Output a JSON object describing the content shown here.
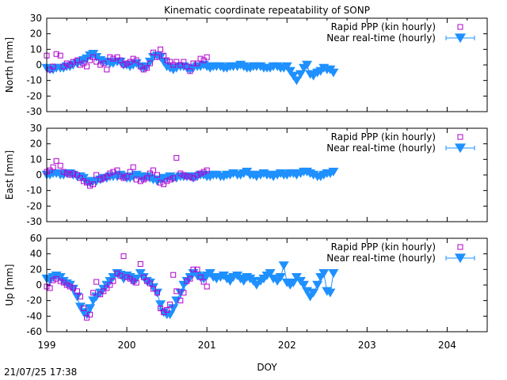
{
  "title": "Kinematic coordinate repeatability of SONP",
  "timestamp": "21/07/25 17:38",
  "xlabel": "DOY",
  "colors": {
    "rapid": "#b000d0",
    "nrt": "#1e90ff",
    "axis": "#000000"
  },
  "chart_data": [
    {
      "type": "scatter",
      "ylabel": "North [mm]",
      "xlim": [
        199,
        204.5
      ],
      "ylim": [
        -30,
        30
      ],
      "yticks": [
        -30,
        -20,
        -10,
        0,
        10,
        20,
        30
      ],
      "legend": "top-right",
      "series": [
        {
          "name": "Rapid PPP (kin hourly)",
          "marker": "square",
          "x": [
            199.0,
            199.04,
            199.08,
            199.12,
            199.17,
            199.21,
            199.25,
            199.29,
            199.33,
            199.38,
            199.42,
            199.46,
            199.5,
            199.54,
            199.58,
            199.62,
            199.67,
            199.71,
            199.75,
            199.79,
            199.83,
            199.88,
            199.92,
            199.96,
            200.0,
            200.04,
            200.08,
            200.12,
            200.17,
            200.21,
            200.25,
            200.29,
            200.33,
            200.38,
            200.42,
            200.46,
            200.5,
            200.54,
            200.58,
            200.62,
            200.67,
            200.71,
            200.75,
            200.79,
            200.83,
            200.88,
            200.92,
            200.96,
            201.0
          ],
          "y": [
            6,
            -3,
            -1,
            7,
            6,
            -1,
            1,
            0,
            2,
            3,
            0,
            1,
            -1,
            3,
            5,
            2,
            0,
            1,
            -3,
            5,
            4,
            5,
            3,
            0,
            1,
            2,
            4,
            3,
            -1,
            -3,
            -2,
            1,
            8,
            5,
            10,
            6,
            3,
            2,
            0,
            2,
            0,
            2,
            -1,
            -4,
            1,
            1,
            4,
            3,
            5
          ]
        },
        {
          "name": "Near real-time (hourly)",
          "marker": "triangle-down",
          "x": [
            199.0,
            199.04,
            199.08,
            199.12,
            199.17,
            199.21,
            199.25,
            199.29,
            199.33,
            199.38,
            199.42,
            199.46,
            199.5,
            199.54,
            199.58,
            199.62,
            199.67,
            199.71,
            199.75,
            199.79,
            199.83,
            199.88,
            199.92,
            199.96,
            200.0,
            200.04,
            200.08,
            200.12,
            200.17,
            200.21,
            200.25,
            200.29,
            200.33,
            200.38,
            200.42,
            200.46,
            200.5,
            200.54,
            200.58,
            200.62,
            200.67,
            200.71,
            200.75,
            200.79,
            200.83,
            200.88,
            200.92,
            200.96,
            201.0,
            201.04,
            201.08,
            201.12,
            201.17,
            201.21,
            201.25,
            201.29,
            201.33,
            201.38,
            201.42,
            201.46,
            201.5,
            201.54,
            201.58,
            201.62,
            201.67,
            201.71,
            201.75,
            201.79,
            201.83,
            201.88,
            201.92,
            201.96,
            202.0,
            202.04,
            202.08,
            202.12,
            202.17,
            202.21,
            202.25,
            202.29,
            202.33,
            202.38,
            202.42,
            202.46,
            202.5,
            202.54,
            202.58
          ],
          "y": [
            -2,
            -3,
            -3,
            -2,
            -2,
            -2,
            -1,
            -1,
            0,
            1,
            2,
            3,
            4,
            6,
            7,
            5,
            3,
            2,
            2,
            1,
            1,
            2,
            2,
            0,
            0,
            -1,
            0,
            1,
            -1,
            -2,
            -1,
            2,
            5,
            6,
            5,
            2,
            -1,
            -2,
            -3,
            -2,
            -1,
            -1,
            -2,
            -3,
            -2,
            -1,
            -1,
            0,
            -1,
            -2,
            -1,
            -1,
            -1,
            -2,
            -2,
            -1,
            -1,
            -1,
            0,
            -1,
            -2,
            -2,
            -1,
            -1,
            -1,
            -2,
            -2,
            -2,
            -1,
            -1,
            -2,
            -2,
            -1,
            -4,
            -7,
            -10,
            -6,
            -2,
            0,
            -6,
            -7,
            -5,
            -4,
            -2,
            -3,
            -3,
            -5
          ]
        }
      ]
    },
    {
      "type": "scatter",
      "ylabel": "East [mm]",
      "xlim": [
        199,
        204.5
      ],
      "ylim": [
        -30,
        30
      ],
      "yticks": [
        -30,
        -20,
        -10,
        0,
        10,
        20,
        30
      ],
      "legend": "top-right",
      "series": [
        {
          "name": "Rapid PPP (kin hourly)",
          "marker": "square",
          "x": [
            199.0,
            199.04,
            199.08,
            199.12,
            199.17,
            199.21,
            199.25,
            199.29,
            199.33,
            199.38,
            199.42,
            199.46,
            199.5,
            199.54,
            199.58,
            199.62,
            199.67,
            199.71,
            199.75,
            199.79,
            199.83,
            199.88,
            199.92,
            199.96,
            200.0,
            200.04,
            200.08,
            200.12,
            200.17,
            200.21,
            200.25,
            200.29,
            200.33,
            200.38,
            200.42,
            200.46,
            200.5,
            200.54,
            200.58,
            200.62,
            200.67,
            200.71,
            200.75,
            200.79,
            200.83,
            200.88,
            200.92,
            200.96,
            201.0
          ],
          "y": [
            2,
            3,
            5,
            9,
            6,
            2,
            1,
            0,
            1,
            0,
            -2,
            -4,
            -5,
            -7,
            -6,
            0,
            -3,
            -2,
            -1,
            1,
            2,
            3,
            -1,
            -2,
            -1,
            2,
            5,
            -3,
            -4,
            -3,
            -2,
            1,
            3,
            0,
            -5,
            -6,
            -4,
            -3,
            -2,
            11,
            1,
            0,
            -1,
            -1,
            -2,
            0,
            1,
            2,
            3
          ]
        },
        {
          "name": "Near real-time (hourly)",
          "marker": "triangle-down",
          "x": [
            199.0,
            199.04,
            199.08,
            199.12,
            199.17,
            199.21,
            199.25,
            199.29,
            199.33,
            199.38,
            199.42,
            199.46,
            199.5,
            199.54,
            199.58,
            199.62,
            199.67,
            199.71,
            199.75,
            199.79,
            199.83,
            199.88,
            199.92,
            199.96,
            200.0,
            200.04,
            200.08,
            200.12,
            200.17,
            200.21,
            200.25,
            200.29,
            200.33,
            200.38,
            200.42,
            200.46,
            200.5,
            200.54,
            200.58,
            200.62,
            200.67,
            200.71,
            200.75,
            200.79,
            200.83,
            200.88,
            200.92,
            200.96,
            201.0,
            201.04,
            201.08,
            201.12,
            201.17,
            201.21,
            201.25,
            201.29,
            201.33,
            201.38,
            201.42,
            201.46,
            201.5,
            201.54,
            201.58,
            201.62,
            201.67,
            201.71,
            201.75,
            201.79,
            201.83,
            201.88,
            201.92,
            201.96,
            202.0,
            202.04,
            202.08,
            202.12,
            202.17,
            202.21,
            202.25,
            202.29,
            202.33,
            202.38,
            202.42,
            202.46,
            202.5,
            202.54,
            202.58
          ],
          "y": [
            0,
            0,
            1,
            1,
            0,
            0,
            1,
            1,
            0,
            -1,
            -1,
            -2,
            -4,
            -5,
            -4,
            -4,
            -3,
            -2,
            -2,
            -1,
            -1,
            -1,
            0,
            -1,
            -2,
            -2,
            -1,
            0,
            -1,
            -2,
            -1,
            -2,
            -3,
            -4,
            -3,
            -2,
            -2,
            -1,
            -2,
            -2,
            -1,
            -1,
            -1,
            -1,
            -2,
            -1,
            0,
            0,
            -1,
            -1,
            0,
            0,
            -1,
            -1,
            0,
            0,
            1,
            0,
            0,
            1,
            2,
            0,
            0,
            -1,
            0,
            1,
            0,
            0,
            -1,
            0,
            1,
            0,
            0,
            1,
            1,
            0,
            1,
            2,
            2,
            1,
            0,
            -1,
            -1,
            0,
            1,
            1,
            2
          ]
        }
      ]
    },
    {
      "type": "scatter",
      "ylabel": "Up [mm]",
      "xlim": [
        199,
        204.5
      ],
      "ylim": [
        -60,
        60
      ],
      "yticks": [
        -60,
        -40,
        -20,
        0,
        20,
        40,
        60
      ],
      "legend": "top-right",
      "series": [
        {
          "name": "Rapid PPP (kin hourly)",
          "marker": "square",
          "x": [
            199.0,
            199.04,
            199.08,
            199.12,
            199.17,
            199.21,
            199.25,
            199.29,
            199.33,
            199.38,
            199.42,
            199.46,
            199.5,
            199.54,
            199.58,
            199.62,
            199.67,
            199.71,
            199.75,
            199.79,
            199.83,
            199.88,
            199.92,
            199.96,
            200.0,
            200.04,
            200.08,
            200.12,
            200.17,
            200.21,
            200.25,
            200.29,
            200.33,
            200.38,
            200.42,
            200.46,
            200.5,
            200.54,
            200.58,
            200.62,
            200.67,
            200.71,
            200.75,
            200.79,
            200.83,
            200.88,
            200.92,
            200.96,
            201.0
          ],
          "y": [
            -2,
            -4,
            6,
            8,
            5,
            3,
            0,
            -2,
            -4,
            -8,
            -15,
            -30,
            -42,
            -38,
            -10,
            4,
            -12,
            -8,
            -4,
            0,
            5,
            15,
            12,
            37,
            10,
            8,
            5,
            3,
            27,
            10,
            5,
            2,
            -5,
            -10,
            -30,
            -35,
            -32,
            -25,
            13,
            -8,
            -20,
            -10,
            5,
            8,
            20,
            20,
            10,
            4,
            -2
          ]
        },
        {
          "name": "Near real-time (hourly)",
          "marker": "triangle-down",
          "x": [
            199.0,
            199.04,
            199.08,
            199.12,
            199.17,
            199.21,
            199.25,
            199.29,
            199.33,
            199.38,
            199.42,
            199.46,
            199.5,
            199.54,
            199.58,
            199.62,
            199.67,
            199.71,
            199.75,
            199.79,
            199.83,
            199.88,
            199.92,
            199.96,
            200.0,
            200.04,
            200.08,
            200.12,
            200.17,
            200.21,
            200.25,
            200.29,
            200.33,
            200.38,
            200.42,
            200.46,
            200.5,
            200.54,
            200.58,
            200.62,
            200.67,
            200.71,
            200.75,
            200.79,
            200.83,
            200.88,
            200.92,
            200.96,
            201.0,
            201.04,
            201.08,
            201.12,
            201.17,
            201.21,
            201.25,
            201.29,
            201.33,
            201.38,
            201.42,
            201.46,
            201.5,
            201.54,
            201.58,
            201.62,
            201.67,
            201.71,
            201.75,
            201.79,
            201.83,
            201.88,
            201.92,
            201.96,
            202.0,
            202.04,
            202.08,
            202.12,
            202.17,
            202.21,
            202.25,
            202.29,
            202.33,
            202.38,
            202.42,
            202.46,
            202.5,
            202.54,
            202.58
          ],
          "y": [
            8,
            6,
            10,
            12,
            10,
            5,
            2,
            0,
            -5,
            -15,
            -28,
            -35,
            -38,
            -30,
            -20,
            -15,
            -10,
            -5,
            0,
            5,
            10,
            15,
            13,
            8,
            12,
            10,
            5,
            8,
            15,
            10,
            5,
            3,
            -3,
            -10,
            -25,
            -35,
            -38,
            -38,
            -30,
            -20,
            -10,
            0,
            5,
            10,
            15,
            12,
            10,
            8,
            12,
            15,
            10,
            8,
            10,
            12,
            8,
            5,
            10,
            12,
            8,
            5,
            10,
            8,
            5,
            0,
            5,
            8,
            12,
            15,
            8,
            5,
            10,
            25,
            3,
            0,
            3,
            10,
            5,
            0,
            -8,
            -15,
            -10,
            0,
            10,
            15,
            -8,
            -10,
            15
          ]
        }
      ]
    }
  ]
}
